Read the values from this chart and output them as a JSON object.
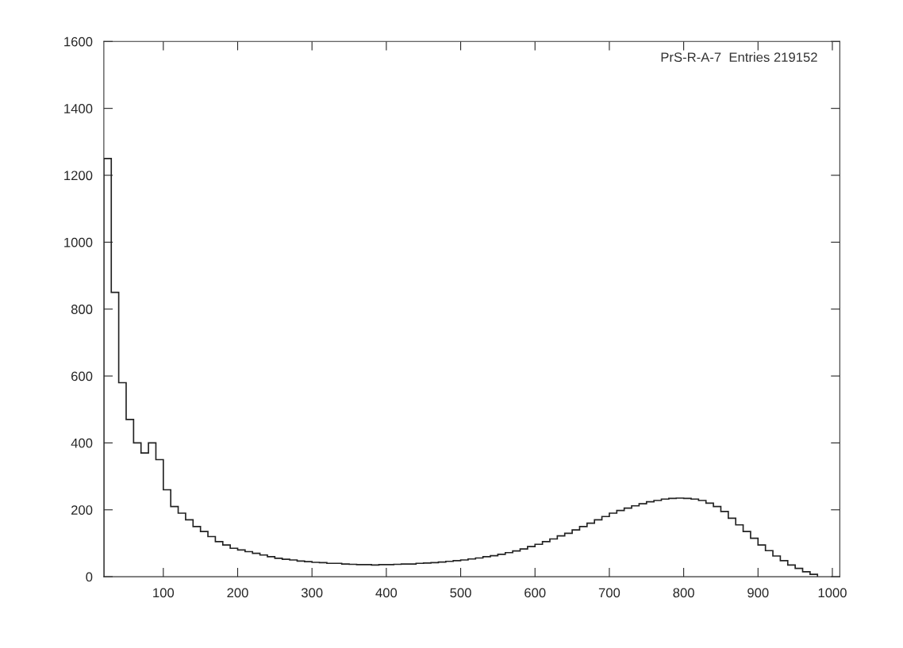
{
  "chart_data": {
    "type": "histogram",
    "annotations": [
      "PrS-R-A-7  Entries 219152"
    ],
    "bins": [
      20,
      30,
      40,
      50,
      60,
      70,
      80,
      90,
      100,
      110,
      120,
      130,
      140,
      150,
      160,
      170,
      180,
      190,
      200,
      210,
      220,
      230,
      240,
      250,
      260,
      270,
      280,
      290,
      300,
      310,
      320,
      330,
      340,
      350,
      360,
      370,
      380,
      390,
      400,
      410,
      420,
      430,
      440,
      450,
      460,
      470,
      480,
      490,
      500,
      510,
      520,
      530,
      540,
      550,
      560,
      570,
      580,
      590,
      600,
      610,
      620,
      630,
      640,
      650,
      660,
      670,
      680,
      690,
      700,
      710,
      720,
      730,
      740,
      750,
      760,
      770,
      780,
      790,
      800,
      810,
      820,
      830,
      840,
      850,
      860,
      870,
      880,
      890,
      900,
      910,
      920,
      930,
      940,
      950,
      960,
      970,
      980
    ],
    "values": [
      1250,
      850,
      580,
      470,
      400,
      370,
      400,
      350,
      260,
      210,
      190,
      170,
      150,
      135,
      120,
      105,
      95,
      85,
      80,
      75,
      70,
      65,
      60,
      55,
      52,
      50,
      47,
      45,
      43,
      42,
      40,
      40,
      38,
      37,
      36,
      36,
      35,
      36,
      36,
      37,
      38,
      38,
      40,
      41,
      42,
      44,
      46,
      48,
      50,
      53,
      56,
      60,
      63,
      67,
      72,
      77,
      83,
      90,
      97,
      105,
      113,
      122,
      130,
      140,
      150,
      160,
      170,
      180,
      190,
      198,
      205,
      212,
      218,
      224,
      228,
      232,
      234,
      235,
      234,
      232,
      228,
      220,
      210,
      195,
      175,
      155,
      135,
      115,
      95,
      78,
      62,
      48,
      35,
      25,
      15,
      7
    ],
    "color": "#222222",
    "xlim": [
      20,
      1010
    ],
    "ylim": [
      0,
      1600
    ],
    "xticks": [
      100,
      200,
      300,
      400,
      500,
      600,
      700,
      800,
      900,
      1000
    ],
    "yticks": [
      0,
      200,
      400,
      600,
      800,
      1000,
      1200,
      1400,
      1600
    ],
    "grid": false,
    "legend": false
  }
}
